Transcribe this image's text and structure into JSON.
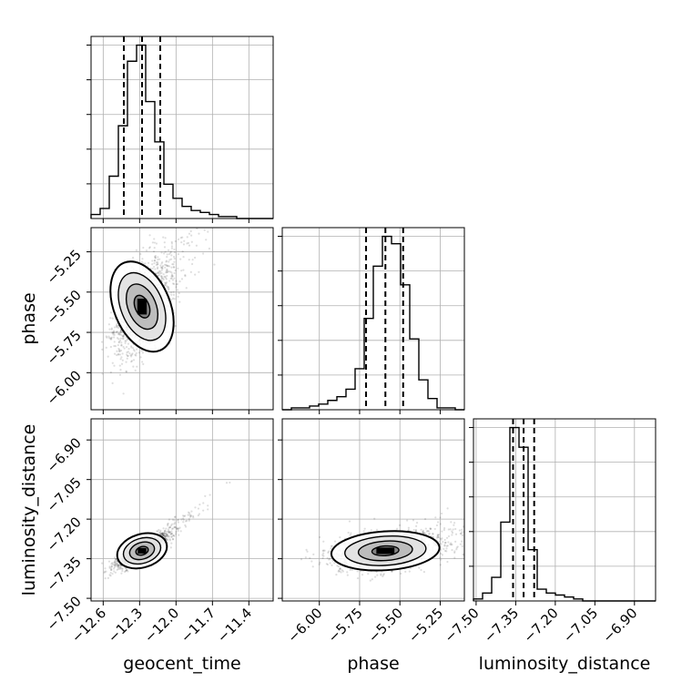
{
  "chart_data": {
    "type": "corner",
    "parameters": [
      "geocent_time",
      "phase",
      "luminosity_distance"
    ],
    "axis_labels": {
      "x": [
        "geocent_time",
        "phase",
        "luminosity_distance"
      ],
      "y_row2": "phase",
      "y_row3": "luminosity_distance"
    },
    "ranges": {
      "geocent_time": [
        -12.7,
        -11.2
      ],
      "phase": [
        -6.23,
        -5.1
      ],
      "luminosity_distance": [
        -7.51,
        -6.82
      ]
    },
    "ticks": {
      "geocent_time": [
        -12.6,
        -12.3,
        -12.0,
        -11.7,
        -11.4
      ],
      "phase_y": [
        -5.25,
        -5.5,
        -5.75,
        -6.0
      ],
      "phase_x": [
        -6.0,
        -5.75,
        -5.5,
        -5.25
      ],
      "luminosity_distance": [
        -7.5,
        -7.35,
        -7.2,
        -7.05,
        -6.9
      ]
    },
    "tick_labels": {
      "geocent_time": [
        "−12.6",
        "−12.3",
        "−12.0",
        "−11.7",
        "−11.4"
      ],
      "phase_y": [
        "−5.25",
        "−5.50",
        "−5.75",
        "−6.00"
      ],
      "phase_x": [
        "−6.00",
        "−5.75",
        "−5.50",
        "−5.25"
      ],
      "luminosity_distance": [
        "−7.50",
        "−7.35",
        "−7.20",
        "−7.05",
        "−6.90"
      ]
    },
    "grid": true,
    "quantiles": {
      "geocent_time": [
        -12.43,
        -12.28,
        -12.13
      ],
      "phase": [
        -5.71,
        -5.59,
        -5.48
      ],
      "luminosity_distance": [
        -7.36,
        -7.32,
        -7.28
      ]
    },
    "histograms": {
      "geocent_time": {
        "edges": [
          -12.7,
          -12.625,
          -12.55,
          -12.475,
          -12.4,
          -12.325,
          -12.25,
          -12.175,
          -12.1,
          -12.025,
          -11.95,
          -11.875,
          -11.8,
          -11.725,
          -11.65,
          -11.575,
          -11.5,
          -11.425,
          -11.35,
          -11.275,
          -11.2
        ],
        "counts": [
          2,
          5,
          21,
          46,
          78,
          86,
          58,
          38,
          17,
          10,
          6,
          4,
          3,
          2,
          1,
          1,
          0,
          0,
          0,
          0
        ]
      },
      "phase": {
        "edges": [
          -6.23,
          -6.1735,
          -6.117,
          -6.0605,
          -6.004,
          -5.9475,
          -5.891,
          -5.8345,
          -5.778,
          -5.7215,
          -5.665,
          -5.6085,
          -5.552,
          -5.4955,
          -5.439,
          -5.3825,
          -5.326,
          -5.2695,
          -5.213,
          -5.1565,
          -5.1
        ],
        "counts": [
          0,
          1,
          1,
          2,
          3,
          5,
          7,
          11,
          22,
          49,
          77,
          93,
          89,
          67,
          38,
          16,
          6,
          1,
          1,
          0
        ]
      },
      "luminosity_distance": {
        "edges": [
          -7.51,
          -7.4755,
          -7.441,
          -7.4065,
          -7.372,
          -7.3375,
          -7.303,
          -7.2685,
          -7.234,
          -7.1995,
          -7.165,
          -7.1305,
          -7.096,
          -7.0615,
          -7.027,
          -6.9925,
          -6.958,
          -6.9235,
          -6.889,
          -6.8545,
          -6.82
        ],
        "counts": [
          1,
          4,
          12,
          40,
          88,
          78,
          26,
          6,
          4,
          3,
          2,
          1,
          0,
          0,
          0,
          0,
          0,
          0,
          0,
          0
        ]
      }
    },
    "joint_2d": [
      {
        "x": "geocent_time",
        "y": "phase",
        "center": [
          -12.28,
          -5.59
        ],
        "spread": [
          0.11,
          0.14
        ],
        "correlation": 0.45,
        "skew": "tail toward upper right"
      },
      {
        "x": "geocent_time",
        "y": "luminosity_distance",
        "center": [
          -12.28,
          -7.32
        ],
        "spread": [
          0.1,
          0.03
        ],
        "correlation": 0.85,
        "skew": "tail toward upper right"
      },
      {
        "x": "phase",
        "y": "luminosity_distance",
        "center": [
          -5.59,
          -7.32
        ],
        "spread": [
          0.16,
          0.035
        ],
        "correlation": 0.3,
        "skew": "tail toward upper right"
      }
    ],
    "contour_levels": [
      "0.5-sigma",
      "1-sigma",
      "1.5-sigma",
      "2-sigma"
    ]
  }
}
